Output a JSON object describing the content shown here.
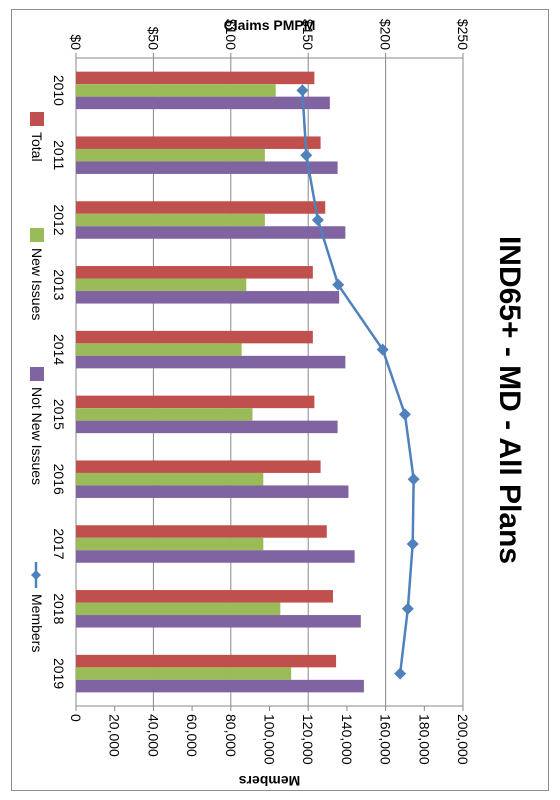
{
  "chart_data": {
    "type": "bar",
    "title": "IND65+ - MD - All Plans",
    "categories": [
      "2010",
      "2011",
      "2012",
      "2013",
      "2014",
      "2015",
      "2016",
      "2017",
      "2018",
      "2019"
    ],
    "series": [
      {
        "name": "Total",
        "kind": "bar",
        "axis": "primary",
        "color": "#c0504d",
        "values": [
          154,
          158,
          161,
          153,
          153,
          154,
          158,
          162,
          166,
          168
        ]
      },
      {
        "name": "New Issues",
        "kind": "bar",
        "axis": "primary",
        "color": "#9bbb59",
        "values": [
          129,
          122,
          122,
          110,
          107,
          114,
          121,
          121,
          132,
          139
        ]
      },
      {
        "name": "Not New Issues",
        "kind": "bar",
        "axis": "primary",
        "color": "#8064a2",
        "values": [
          164,
          169,
          174,
          170,
          174,
          169,
          176,
          180,
          184,
          186
        ]
      },
      {
        "name": "Members",
        "kind": "line",
        "axis": "secondary",
        "color": "#4f81bd",
        "values": [
          117000,
          119000,
          125000,
          135500,
          158500,
          170000,
          174500,
          174000,
          171500,
          167500
        ]
      }
    ],
    "ylabel": "Claims PMPM",
    "y2label": "Members",
    "ylim": [
      0,
      250
    ],
    "y2lim": [
      0,
      200000
    ],
    "yticks": [
      "$0",
      "$50",
      "$100",
      "$150",
      "$200",
      "$250"
    ],
    "y2ticks": [
      "0",
      "20,000",
      "40,000",
      "60,000",
      "80,000",
      "100,000",
      "120,000",
      "140,000",
      "160,000",
      "180,000",
      "200,000"
    ],
    "gridlines": "major on primary axis",
    "legend_position": "right",
    "orientation": "rotated 90 degrees clockwise"
  }
}
